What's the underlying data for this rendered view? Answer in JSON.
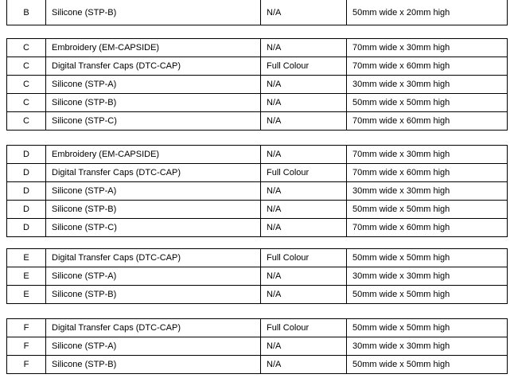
{
  "document": {
    "background_color": "#ffffff",
    "border_color": "#000000",
    "text_color": "#000000",
    "colour_na": "N/A",
    "colour_full": "Full Colour"
  },
  "tables": [
    {
      "name": "group-b",
      "clipped_top": true,
      "rows": [
        {
          "group": "B",
          "product": "Silicone (STP-B)",
          "colour": "N/A",
          "size": "50mm wide x 20mm high"
        }
      ]
    },
    {
      "name": "group-c",
      "clipped_top": false,
      "rows": [
        {
          "group": "C",
          "product": "Embroidery (EM-CAPSIDE)",
          "colour": "N/A",
          "size": "70mm wide x 30mm high"
        },
        {
          "group": "C",
          "product": "Digital Transfer Caps (DTC-CAP)",
          "colour": "Full Colour",
          "size": "70mm wide x 60mm high"
        },
        {
          "group": "C",
          "product": "Silicone (STP-A)",
          "colour": "N/A",
          "size": "30mm wide x 30mm high"
        },
        {
          "group": "C",
          "product": "Silicone (STP-B)",
          "colour": "N/A",
          "size": "50mm wide x 50mm high"
        },
        {
          "group": "C",
          "product": "Silicone (STP-C)",
          "colour": "N/A",
          "size": "70mm wide x 60mm high"
        }
      ]
    },
    {
      "name": "group-d",
      "clipped_top": false,
      "rows": [
        {
          "group": "D",
          "product": "Embroidery (EM-CAPSIDE)",
          "colour": "N/A",
          "size": "70mm wide x 30mm high"
        },
        {
          "group": "D",
          "product": "Digital Transfer Caps (DTC-CAP)",
          "colour": "Full Colour",
          "size": "70mm wide x 60mm high"
        },
        {
          "group": "D",
          "product": "Silicone (STP-A)",
          "colour": "N/A",
          "size": "30mm wide x 30mm high"
        },
        {
          "group": "D",
          "product": "Silicone (STP-B)",
          "colour": "N/A",
          "size": "50mm wide x 50mm high"
        },
        {
          "group": "D",
          "product": "Silicone (STP-C)",
          "colour": "N/A",
          "size": "70mm wide x 60mm high"
        }
      ]
    },
    {
      "name": "group-e",
      "clipped_top": false,
      "rows": [
        {
          "group": "E",
          "product": "Digital Transfer Caps (DTC-CAP)",
          "colour": "Full Colour",
          "size": "50mm wide x 50mm high"
        },
        {
          "group": "E",
          "product": "Silicone (STP-A)",
          "colour": "N/A",
          "size": "30mm wide x 30mm high"
        },
        {
          "group": "E",
          "product": "Silicone (STP-B)",
          "colour": "N/A",
          "size": "50mm wide x 50mm high"
        }
      ]
    },
    {
      "name": "group-f",
      "clipped_top": false,
      "rows": [
        {
          "group": "F",
          "product": "Digital Transfer Caps (DTC-CAP)",
          "colour": "Full Colour",
          "size": "50mm wide x 50mm high"
        },
        {
          "group": "F",
          "product": "Silicone (STP-A)",
          "colour": "N/A",
          "size": "30mm wide x 30mm high"
        },
        {
          "group": "F",
          "product": "Silicone (STP-B)",
          "colour": "N/A",
          "size": "50mm wide x 50mm high"
        }
      ]
    }
  ]
}
